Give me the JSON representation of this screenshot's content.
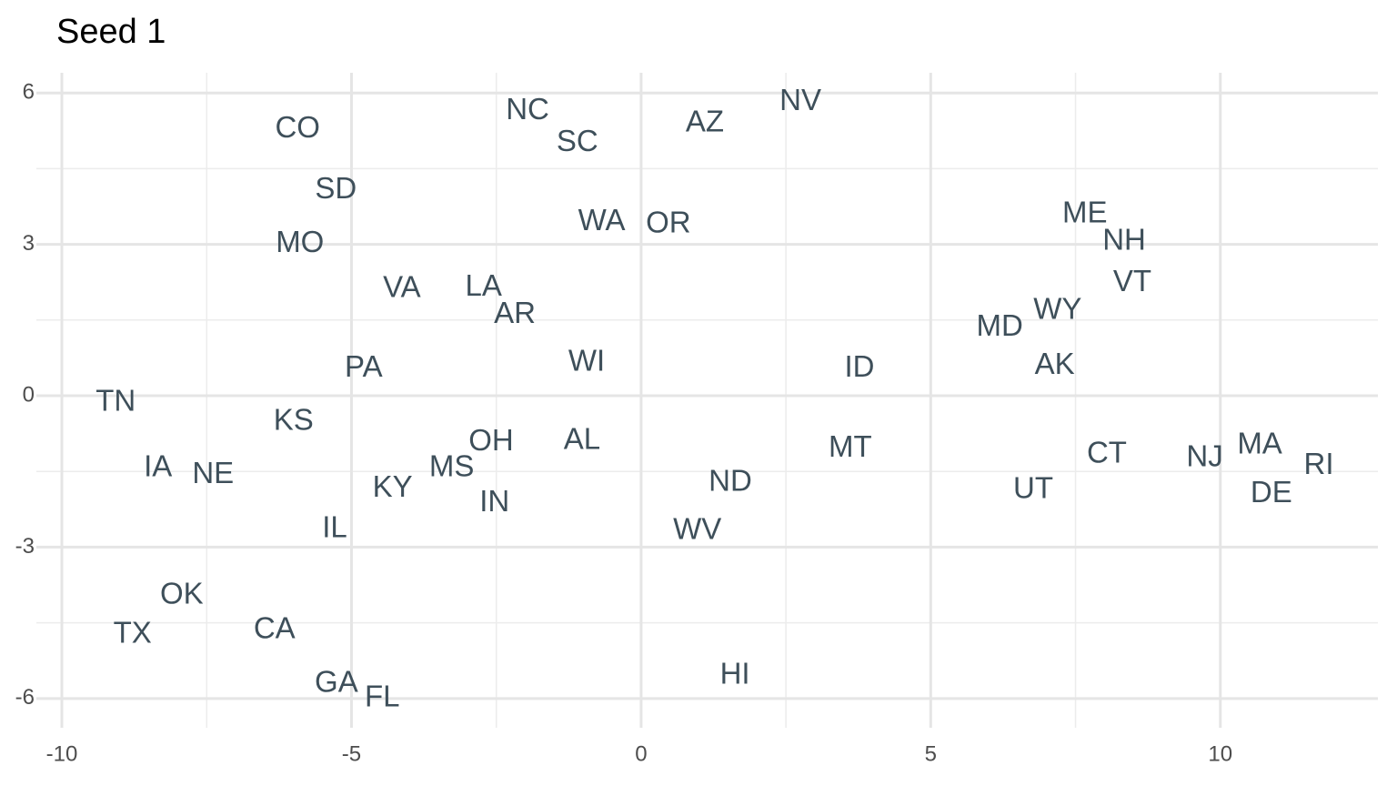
{
  "chart_data": {
    "type": "text-scatter",
    "title": "Seed 1",
    "labels": [
      "CO",
      "NC",
      "SC",
      "AZ",
      "NV",
      "SD",
      "WA",
      "OR",
      "ME",
      "NH",
      "VT",
      "MO",
      "VA",
      "LA",
      "AR",
      "WY",
      "MD",
      "AK",
      "ID",
      "WI",
      "PA",
      "TN",
      "KS",
      "OH",
      "AL",
      "MT",
      "CT",
      "NJ",
      "MA",
      "RI",
      "DE",
      "IA",
      "NE",
      "MS",
      "KY",
      "IN",
      "ND",
      "UT",
      "IL",
      "WV",
      "OK",
      "TX",
      "CA",
      "GA",
      "FL",
      "HI"
    ],
    "x": [
      -5.93,
      -1.96,
      -1.1,
      1.1,
      2.75,
      -5.27,
      -0.68,
      0.47,
      7.66,
      8.34,
      8.48,
      -5.89,
      -4.13,
      -2.72,
      -2.18,
      7.19,
      6.19,
      7.14,
      3.77,
      -0.94,
      -4.79,
      -9.07,
      -6.0,
      -2.59,
      -1.02,
      3.61,
      8.04,
      9.73,
      10.68,
      11.7,
      10.88,
      -8.34,
      -7.39,
      -3.27,
      -4.29,
      -2.53,
      1.54,
      6.77,
      -5.29,
      0.97,
      -7.93,
      -8.78,
      -6.33,
      -5.26,
      -4.47,
      1.62
    ],
    "values": [
      5.28,
      5.64,
      5.01,
      5.39,
      5.82,
      4.07,
      3.44,
      3.39,
      3.59,
      3.05,
      2.23,
      3.01,
      2.11,
      2.14,
      1.6,
      1.68,
      1.35,
      0.59,
      0.54,
      0.65,
      0.54,
      -0.14,
      -0.52,
      -0.92,
      -0.9,
      -1.05,
      -1.17,
      -1.24,
      -0.99,
      -1.39,
      -1.95,
      -1.44,
      -1.57,
      -1.44,
      -1.84,
      -2.13,
      -1.73,
      -1.87,
      -2.65,
      -2.68,
      -3.96,
      -4.74,
      -4.65,
      -5.71,
      -6.0,
      -5.55
    ],
    "color": "#3e4f5a",
    "xlim": [
      -10.44,
      12.72
    ],
    "ylim": [
      -6.58,
      6.4
    ],
    "xticks": [
      -10,
      -5,
      0,
      5,
      10
    ],
    "yticks": [
      -6,
      -3,
      0,
      3,
      6
    ],
    "grid": true
  }
}
